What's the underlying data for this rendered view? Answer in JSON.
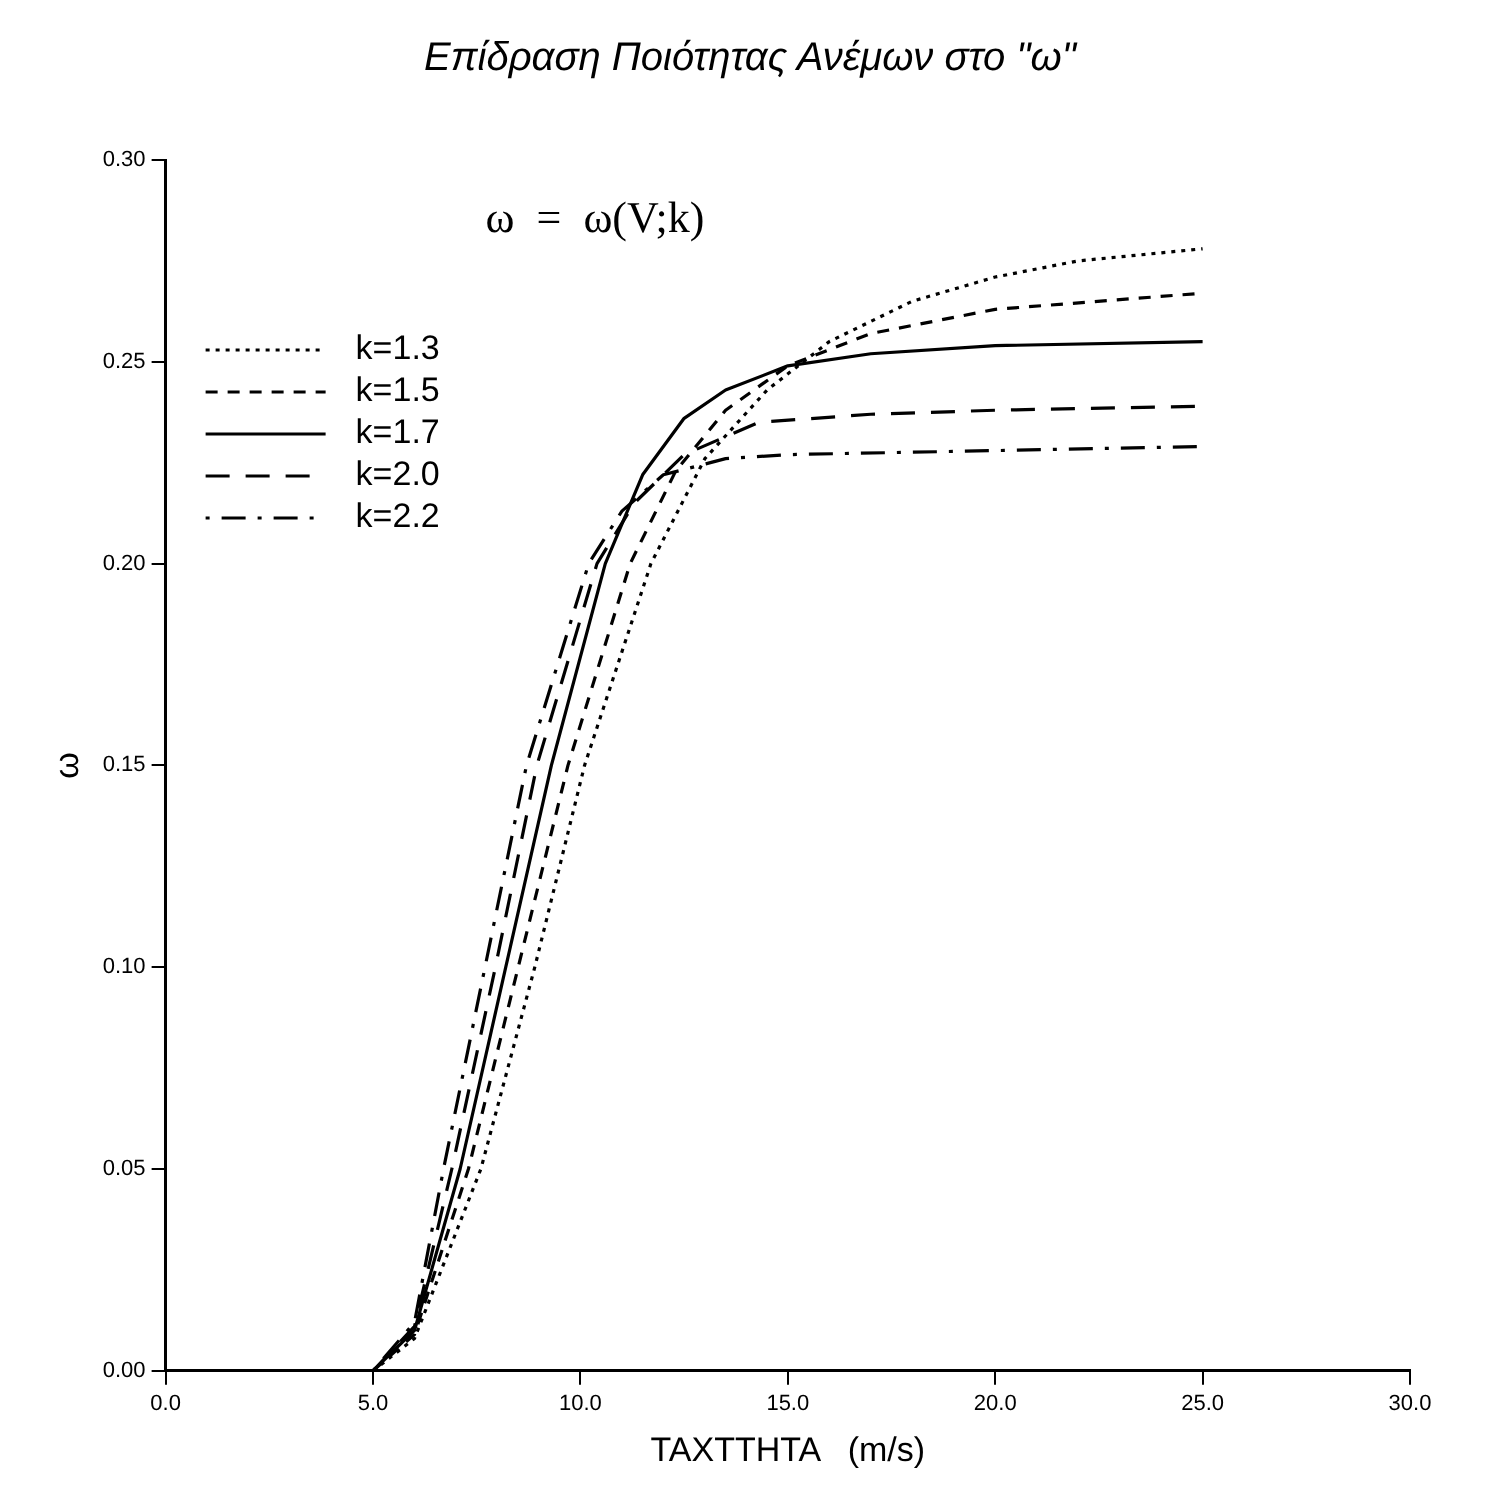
{
  "chart_data": {
    "type": "line",
    "title": "Επίδραση Ποιότητας Ανέμων στο \"ω\"",
    "xlabel": "TAXTTHTA   (m/s)",
    "ylabel": "ω",
    "annotations": [
      "ω  =  ω(V;k)"
    ],
    "xlim": [
      0,
      30
    ],
    "xticks": [
      {
        "value": 0,
        "label": "0.0"
      },
      {
        "value": 5,
        "label": "5.0"
      },
      {
        "value": 10,
        "label": "10.0"
      },
      {
        "value": 15,
        "label": "15.0"
      },
      {
        "value": 20,
        "label": "20.0"
      },
      {
        "value": 25,
        "label": "25.0"
      },
      {
        "value": 30,
        "label": "30.0"
      }
    ],
    "ylim": [
      0,
      0.3
    ],
    "yticks": [
      {
        "value": 0,
        "label": "0.00"
      },
      {
        "value": 0.05,
        "label": "0.05"
      },
      {
        "value": 0.1,
        "label": "0.10"
      },
      {
        "value": 0.15,
        "label": "0.15"
      },
      {
        "value": 0.2,
        "label": "0.20"
      },
      {
        "value": 0.25,
        "label": "0.25"
      },
      {
        "value": 0.3,
        "label": "0.30"
      }
    ],
    "grid": false,
    "legend": "top left",
    "marker": "none",
    "series": [
      {
        "name": "k=1.3",
        "color": "#000000",
        "line_style": "dotted",
        "x": [
          5,
          6,
          7.6,
          8.9,
          10.1,
          11.7,
          13,
          14.5,
          16,
          18,
          20,
          22,
          25
        ],
        "values": [
          0,
          0.008,
          0.05,
          0.1,
          0.15,
          0.2,
          0.226,
          0.243,
          0.255,
          0.265,
          0.271,
          0.275,
          0.278
        ]
      },
      {
        "name": "k=1.5",
        "color": "#000000",
        "line_style": "dashed",
        "x": [
          5,
          6,
          7.3,
          8.5,
          9.7,
          11.2,
          12.3,
          13.5,
          15,
          17,
          20,
          25
        ],
        "values": [
          0,
          0.009,
          0.05,
          0.1,
          0.15,
          0.2,
          0.223,
          0.238,
          0.249,
          0.257,
          0.263,
          0.267
        ]
      },
      {
        "name": "k=1.7",
        "color": "#000000",
        "line_style": "solid",
        "x": [
          5,
          6,
          7.1,
          8.2,
          9.3,
          10.6,
          11.5,
          12.5,
          13.5,
          15,
          17,
          20,
          25
        ],
        "values": [
          0,
          0.01,
          0.05,
          0.1,
          0.15,
          0.2,
          0.222,
          0.236,
          0.243,
          0.249,
          0.252,
          0.254,
          0.255
        ]
      },
      {
        "name": "k=2.0",
        "color": "#000000",
        "line_style": "longdash",
        "x": [
          5,
          6,
          6.9,
          7.95,
          8.95,
          10.4,
          11.3,
          12.5,
          14.3,
          17,
          20,
          25
        ],
        "values": [
          0,
          0.011,
          0.05,
          0.1,
          0.15,
          0.2,
          0.215,
          0.227,
          0.235,
          0.237,
          0.238,
          0.239
        ]
      },
      {
        "name": "k=2.2",
        "color": "#000000",
        "line_style": "dashdot",
        "x": [
          5,
          6,
          6.7,
          7.7,
          8.7,
          10.2,
          11,
          12,
          13.5,
          15,
          20,
          25
        ],
        "values": [
          0,
          0.012,
          0.05,
          0.1,
          0.15,
          0.2,
          0.213,
          0.222,
          0.226,
          0.227,
          0.228,
          0.229
        ]
      }
    ]
  }
}
